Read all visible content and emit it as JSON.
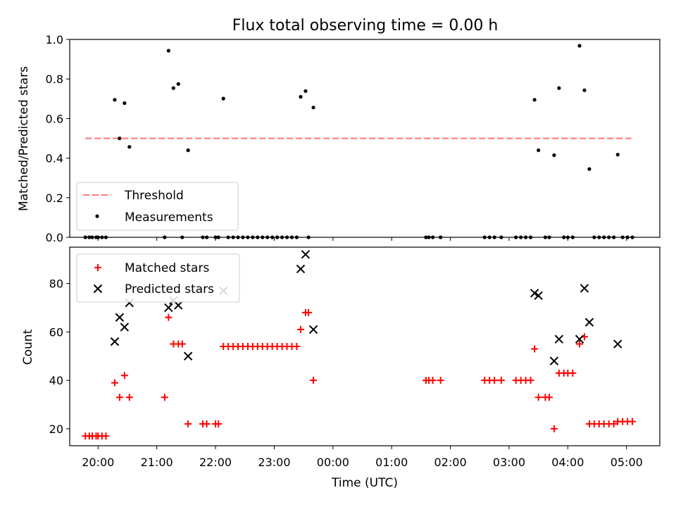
{
  "title": "Flux total observing time = 0.00 h",
  "chart_data": [
    {
      "type": "scatter",
      "ylabel": "Matched/Predicted stars",
      "xlabel": "",
      "xlim": [
        "19:31",
        "05:34"
      ],
      "ylim": [
        0,
        1.0
      ],
      "y_ticks": [
        "0.0",
        "0.2",
        "0.4",
        "0.6",
        "0.8",
        "1.0"
      ],
      "grid": false,
      "legend_location": "lower-left",
      "threshold": {
        "name": "Threshold",
        "y": 0.5,
        "x_range": [
          "19:47",
          "05:05"
        ],
        "color": "#ff8080",
        "style": "dashed"
      },
      "series": [
        {
          "name": "Measurements",
          "color": "#000000",
          "marker": "dot",
          "points": [
            [
              "19:47",
              0.0
            ],
            [
              "19:51",
              0.0
            ],
            [
              "19:54",
              0.0
            ],
            [
              "19:58",
              0.0
            ],
            [
              "20:00",
              0.0
            ],
            [
              "20:04",
              0.0
            ],
            [
              "20:08",
              0.0
            ],
            [
              "20:17",
              0.695
            ],
            [
              "20:22",
              0.5
            ],
            [
              "20:27",
              0.678
            ],
            [
              "20:32",
              0.457
            ],
            [
              "21:08",
              0.0
            ],
            [
              "21:12",
              0.943
            ],
            [
              "21:17",
              0.754
            ],
            [
              "21:22",
              0.775
            ],
            [
              "21:26",
              0.0
            ],
            [
              "21:32",
              0.44
            ],
            [
              "21:47",
              0.0
            ],
            [
              "21:51",
              0.0
            ],
            [
              "22:00",
              0.0
            ],
            [
              "22:03",
              0.0
            ],
            [
              "22:08",
              0.701
            ],
            [
              "22:13",
              0.0
            ],
            [
              "22:18",
              0.0
            ],
            [
              "22:23",
              0.0
            ],
            [
              "22:28",
              0.0
            ],
            [
              "22:33",
              0.0
            ],
            [
              "22:38",
              0.0
            ],
            [
              "22:43",
              0.0
            ],
            [
              "22:48",
              0.0
            ],
            [
              "22:53",
              0.0
            ],
            [
              "22:58",
              0.0
            ],
            [
              "23:03",
              0.0
            ],
            [
              "23:08",
              0.0
            ],
            [
              "23:13",
              0.0
            ],
            [
              "23:18",
              0.0
            ],
            [
              "23:23",
              0.0
            ],
            [
              "23:27",
              0.71
            ],
            [
              "23:32",
              0.739
            ],
            [
              "23:35",
              0.0
            ],
            [
              "23:40",
              0.656
            ],
            [
              "01:35",
              0.0
            ],
            [
              "01:38",
              0.0
            ],
            [
              "01:42",
              0.0
            ],
            [
              "01:50",
              0.0
            ],
            [
              "02:35",
              0.0
            ],
            [
              "02:40",
              0.0
            ],
            [
              "02:45",
              0.0
            ],
            [
              "02:52",
              0.0
            ],
            [
              "03:07",
              0.0
            ],
            [
              "03:12",
              0.0
            ],
            [
              "03:17",
              0.0
            ],
            [
              "03:22",
              0.0
            ],
            [
              "03:26",
              0.695
            ],
            [
              "03:30",
              0.44
            ],
            [
              "03:37",
              0.0
            ],
            [
              "03:41",
              0.0
            ],
            [
              "03:46",
              0.415
            ],
            [
              "03:51",
              0.754
            ],
            [
              "03:56",
              0.0
            ],
            [
              "04:00",
              0.0
            ],
            [
              "04:05",
              0.0
            ],
            [
              "04:12",
              0.968
            ],
            [
              "04:17",
              0.743
            ],
            [
              "04:22",
              0.345
            ],
            [
              "04:27",
              0.0
            ],
            [
              "04:32",
              0.0
            ],
            [
              "04:37",
              0.0
            ],
            [
              "04:42",
              0.0
            ],
            [
              "04:47",
              0.0
            ],
            [
              "04:51",
              0.418
            ],
            [
              "04:56",
              0.0
            ],
            [
              "05:01",
              0.0
            ],
            [
              "05:06",
              0.0
            ]
          ]
        }
      ]
    },
    {
      "type": "scatter",
      "ylabel": "Count",
      "xlabel": "Time (UTC)",
      "xlim": [
        "19:31",
        "05:34"
      ],
      "ylim": [
        13,
        95
      ],
      "y_ticks": [
        "20",
        "40",
        "60",
        "80"
      ],
      "x_ticks": [
        "20:00",
        "21:00",
        "22:00",
        "23:00",
        "00:00",
        "01:00",
        "02:00",
        "03:00",
        "04:00",
        "05:00"
      ],
      "grid": false,
      "legend_location": "upper-left",
      "series": [
        {
          "name": "Matched stars",
          "color": "#ff0000",
          "marker": "plus",
          "points": [
            [
              "19:47",
              17
            ],
            [
              "19:51",
              17
            ],
            [
              "19:54",
              17
            ],
            [
              "19:58",
              17
            ],
            [
              "20:00",
              17
            ],
            [
              "20:04",
              17
            ],
            [
              "20:08",
              17
            ],
            [
              "20:17",
              39
            ],
            [
              "20:22",
              33
            ],
            [
              "20:27",
              42
            ],
            [
              "20:32",
              33
            ],
            [
              "21:08",
              33
            ],
            [
              "21:12",
              66
            ],
            [
              "21:17",
              55
            ],
            [
              "21:22",
              55
            ],
            [
              "21:26",
              55
            ],
            [
              "21:32",
              22
            ],
            [
              "21:47",
              22
            ],
            [
              "21:51",
              22
            ],
            [
              "22:00",
              22
            ],
            [
              "22:03",
              22
            ],
            [
              "22:08",
              54
            ],
            [
              "22:13",
              54
            ],
            [
              "22:18",
              54
            ],
            [
              "22:23",
              54
            ],
            [
              "22:28",
              54
            ],
            [
              "22:33",
              54
            ],
            [
              "22:38",
              54
            ],
            [
              "22:43",
              54
            ],
            [
              "22:48",
              54
            ],
            [
              "22:53",
              54
            ],
            [
              "22:58",
              54
            ],
            [
              "23:03",
              54
            ],
            [
              "23:08",
              54
            ],
            [
              "23:13",
              54
            ],
            [
              "23:18",
              54
            ],
            [
              "23:23",
              54
            ],
            [
              "23:27",
              61
            ],
            [
              "23:32",
              68
            ],
            [
              "23:35",
              68
            ],
            [
              "23:40",
              40
            ],
            [
              "01:35",
              40
            ],
            [
              "01:38",
              40
            ],
            [
              "01:42",
              40
            ],
            [
              "01:50",
              40
            ],
            [
              "02:35",
              40
            ],
            [
              "02:40",
              40
            ],
            [
              "02:45",
              40
            ],
            [
              "02:52",
              40
            ],
            [
              "03:07",
              40
            ],
            [
              "03:12",
              40
            ],
            [
              "03:17",
              40
            ],
            [
              "03:22",
              40
            ],
            [
              "03:26",
              53
            ],
            [
              "03:30",
              33
            ],
            [
              "03:37",
              33
            ],
            [
              "03:41",
              33
            ],
            [
              "03:46",
              20
            ],
            [
              "03:51",
              43
            ],
            [
              "03:56",
              43
            ],
            [
              "04:00",
              43
            ],
            [
              "04:05",
              43
            ],
            [
              "04:12",
              55
            ],
            [
              "04:17",
              58
            ],
            [
              "04:22",
              22
            ],
            [
              "04:27",
              22
            ],
            [
              "04:32",
              22
            ],
            [
              "04:37",
              22
            ],
            [
              "04:42",
              22
            ],
            [
              "04:47",
              22
            ],
            [
              "04:51",
              23
            ],
            [
              "04:56",
              23
            ],
            [
              "05:01",
              23
            ],
            [
              "05:06",
              23
            ]
          ]
        },
        {
          "name": "Predicted stars",
          "color": "#000000",
          "marker": "x",
          "points": [
            [
              "20:17",
              56
            ],
            [
              "20:22",
              66
            ],
            [
              "20:27",
              62
            ],
            [
              "20:32",
              72
            ],
            [
              "21:12",
              70
            ],
            [
              "21:17",
              73
            ],
            [
              "21:22",
              71
            ],
            [
              "21:32",
              50
            ],
            [
              "22:08",
              77
            ],
            [
              "23:27",
              86
            ],
            [
              "23:32",
              92
            ],
            [
              "23:40",
              61
            ],
            [
              "03:26",
              76
            ],
            [
              "03:30",
              75
            ],
            [
              "03:46",
              48
            ],
            [
              "03:51",
              57
            ],
            [
              "04:12",
              57
            ],
            [
              "04:17",
              78
            ],
            [
              "04:22",
              64
            ],
            [
              "04:51",
              55
            ]
          ]
        }
      ]
    }
  ]
}
